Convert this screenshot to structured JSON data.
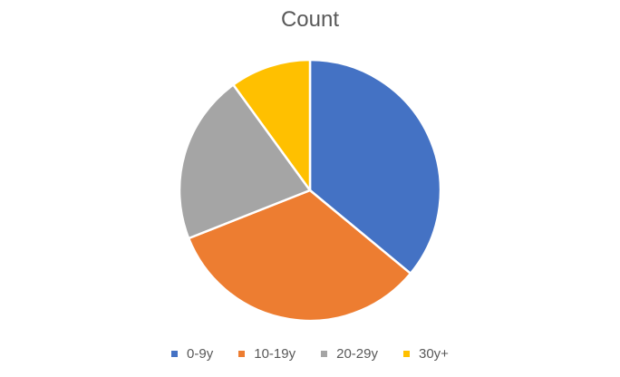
{
  "chart_data": {
    "type": "pie",
    "title": "Count",
    "categories": [
      "0-9y",
      "10-19y",
      "20-29y",
      "30y+"
    ],
    "values": [
      36,
      33,
      21,
      10
    ],
    "colors": [
      "#4472C4",
      "#ED7D31",
      "#A5A5A5",
      "#FFC000"
    ],
    "legend_position": "bottom"
  }
}
